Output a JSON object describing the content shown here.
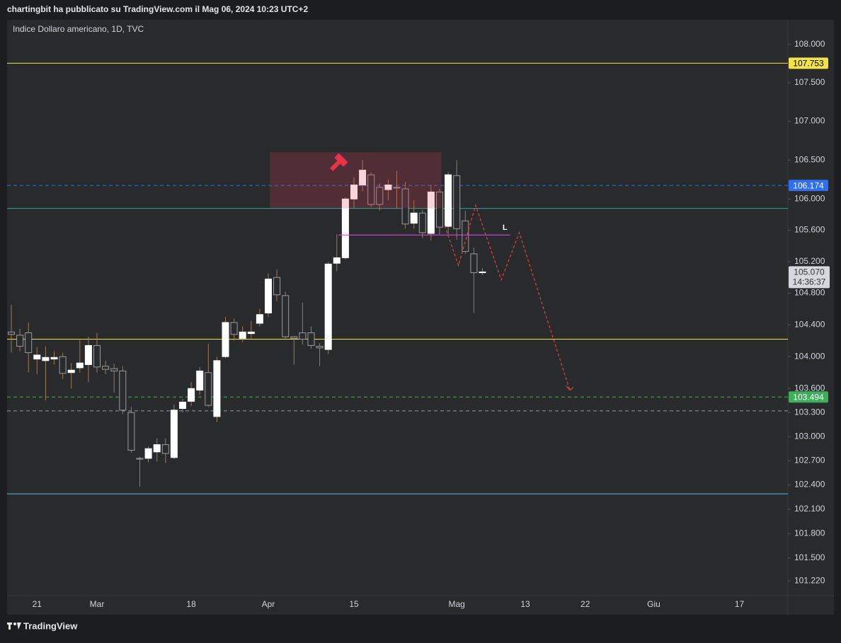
{
  "header": {
    "text": "chartingbit ha pubblicato su TradingView.com il Mag 06, 2024 10:23 UTC+2"
  },
  "footer": {
    "brand": "TradingView"
  },
  "chart_data": {
    "type": "candlestick",
    "title": "Indice Dollaro americano, 1D, TVC",
    "log_scale": true,
    "ylim": [
      101.04,
      108.32
    ],
    "yticks": [
      {
        "value": 108,
        "label": "108.000"
      },
      {
        "value": 107.5,
        "label": "107.500"
      },
      {
        "value": 107,
        "label": "107.000"
      },
      {
        "value": 106.5,
        "label": "106.500"
      },
      {
        "value": 106,
        "label": "106.000"
      },
      {
        "value": 105.6,
        "label": "105.600"
      },
      {
        "value": 105.2,
        "label": "105.200"
      },
      {
        "value": 104.8,
        "label": "104.800"
      },
      {
        "value": 104.4,
        "label": "104.400"
      },
      {
        "value": 104,
        "label": "104.000"
      },
      {
        "value": 103.6,
        "label": "103.600"
      },
      {
        "value": 103.3,
        "label": "103.300"
      },
      {
        "value": 103,
        "label": "103.000"
      },
      {
        "value": 102.7,
        "label": "102.700"
      },
      {
        "value": 102.4,
        "label": "102.400"
      },
      {
        "value": 102.1,
        "label": "102.100"
      },
      {
        "value": 101.8,
        "label": "101.800"
      },
      {
        "value": 101.5,
        "label": "101.500"
      },
      {
        "value": 101.22,
        "label": "101.220"
      }
    ],
    "categories": [
      null,
      null,
      null,
      "21",
      null,
      null,
      null,
      null,
      null,
      null,
      "Mar",
      null,
      null,
      null,
      null,
      null,
      null,
      null,
      null,
      null,
      null,
      "18",
      null,
      null,
      null,
      null,
      null,
      null,
      null,
      null,
      "Apr",
      null,
      null,
      null,
      null,
      null,
      null,
      null,
      null,
      null,
      "15",
      null,
      null,
      null,
      null,
      null,
      null,
      null,
      null,
      null,
      null,
      null,
      "Mag",
      null,
      null,
      null,
      null,
      null,
      null,
      null,
      "13",
      null,
      null,
      null,
      null,
      null,
      null,
      "22",
      null,
      null,
      null,
      null,
      null,
      null,
      null,
      "Giu",
      null,
      null,
      null,
      null,
      null,
      null,
      null,
      null,
      null,
      "17"
    ],
    "open": [
      104.31,
      104.27,
      104.3,
      103.97,
      103.95,
      103.97,
      104.0,
      103.8,
      103.86,
      103.9,
      104.14,
      103.88,
      103.85,
      103.82,
      103.3,
      102.73,
      102.73,
      102.81,
      102.9,
      102.74,
      103.35,
      103.44,
      103.58,
      103.8,
      103.25,
      104.0,
      104.43,
      104.23,
      104.29,
      104.42,
      104.55,
      105.0,
      104.77,
      104.25,
      104.3,
      104.3,
      104.13,
      104.09,
      105.18,
      105.25,
      106.0,
      106.18,
      106.31,
      106.15,
      106.12,
      106.15,
      106.13,
      105.69,
      105.82,
      105.56,
      106.09,
      105.65,
      106.3,
      105.72,
      105.3,
      105.06,
      null,
      null,
      null,
      null,
      null,
      null,
      null,
      null,
      null,
      null,
      null,
      null,
      null,
      null,
      null,
      null,
      null,
      null,
      null,
      null,
      null,
      null,
      null,
      null,
      null,
      null,
      null,
      null,
      null,
      null
    ],
    "high": [
      104.65,
      104.35,
      104.43,
      104.12,
      104.13,
      104.07,
      104.05,
      103.92,
      104.22,
      104.25,
      104.3,
      103.95,
      103.91,
      103.88,
      103.37,
      102.75,
      102.88,
      102.98,
      102.98,
      103.4,
      103.47,
      103.68,
      103.87,
      104.16,
      104.0,
      104.5,
      104.48,
      104.38,
      104.45,
      104.6,
      105.05,
      105.1,
      104.82,
      104.26,
      104.68,
      104.38,
      104.17,
      105.2,
      105.55,
      106.02,
      106.28,
      106.5,
      106.34,
      106.2,
      106.25,
      106.36,
      106.22,
      105.98,
      105.86,
      106.18,
      106.13,
      106.35,
      106.5,
      105.85,
      105.38,
      105.12,
      null,
      null,
      null,
      null,
      null,
      null,
      null,
      null,
      null,
      null,
      null,
      null,
      null,
      null,
      null,
      null,
      null,
      null,
      null,
      null,
      null,
      null,
      null,
      null,
      null,
      null,
      null,
      null,
      null,
      null
    ],
    "low": [
      104.05,
      104.07,
      103.8,
      103.78,
      103.45,
      103.9,
      103.72,
      103.6,
      103.8,
      103.68,
      103.8,
      103.78,
      103.55,
      103.28,
      102.8,
      102.38,
      102.68,
      102.69,
      102.67,
      102.72,
      103.3,
      103.38,
      103.52,
      103.37,
      103.18,
      103.98,
      104.2,
      104.18,
      104.23,
      104.38,
      104.5,
      104.7,
      104.22,
      103.9,
      104.15,
      104.1,
      103.88,
      104.03,
      105.08,
      105.23,
      105.88,
      106.1,
      105.9,
      105.85,
      105.98,
      105.88,
      105.62,
      105.62,
      105.5,
      105.47,
      105.55,
      105.55,
      105.48,
      105.3,
      104.55,
      105.03,
      null,
      null,
      null,
      null,
      null,
      null,
      null,
      null,
      null,
      null,
      null,
      null,
      null,
      null,
      null,
      null,
      null,
      null,
      null,
      null,
      null,
      null,
      null,
      null,
      null,
      null,
      null,
      null,
      null,
      null
    ],
    "close": [
      104.28,
      104.13,
      104.05,
      104.02,
      103.99,
      103.99,
      103.79,
      103.83,
      103.92,
      104.14,
      103.87,
      103.84,
      103.82,
      103.33,
      102.83,
      102.72,
      102.85,
      102.9,
      102.79,
      103.33,
      103.43,
      103.6,
      103.82,
      103.39,
      103.95,
      104.43,
      104.28,
      104.31,
      104.31,
      104.53,
      104.98,
      104.78,
      104.25,
      104.23,
      104.22,
      104.14,
      104.11,
      105.17,
      105.25,
      106.0,
      106.18,
      106.37,
      105.93,
      105.93,
      106.18,
      106.14,
      105.68,
      105.82,
      105.57,
      106.09,
      105.64,
      106.31,
      105.62,
      105.33,
      105.06,
      105.07,
      null,
      null,
      null,
      null,
      null,
      null,
      null,
      null,
      null,
      null,
      null,
      null,
      null,
      null,
      null,
      null,
      null,
      null,
      null,
      null,
      null,
      null,
      null,
      null,
      null,
      null,
      null,
      null,
      null,
      null
    ],
    "up_color": "#ffffff",
    "down_color": "#2a2b2d",
    "down_border": "#9b9b9b",
    "wick_color": "#9c7b5b",
    "levels": [
      {
        "value": 107.753,
        "label": "107.753",
        "color": "#f2e349",
        "dashed": false
      },
      {
        "value": 106.174,
        "label": "106.174",
        "color": "#2f6ff0",
        "dashed": true
      },
      {
        "value": 105.88,
        "color": "#2aa89a",
        "dashed": false
      },
      {
        "value": 104.22,
        "color": "#f2e349",
        "dashed": false
      },
      {
        "value": 103.494,
        "label": "103.494",
        "color": "#3fae5c",
        "dashed": true
      },
      {
        "value": 103.32,
        "color": "#9a9a9a",
        "dashed": true
      },
      {
        "value": 102.29,
        "color": "#4fc3d8",
        "dashed": false
      }
    ],
    "last_price": {
      "value": 105.07,
      "label": "105.070",
      "countdown": "14:36:37"
    },
    "zone": {
      "x": [
        30.2,
        50.2
      ],
      "y": [
        105.88,
        106.6
      ],
      "color": "#e0405a"
    },
    "marker_line": {
      "value": 105.54,
      "x": [
        38.2,
        58.2
      ],
      "label": "L",
      "color": "#e040e0"
    },
    "projection": {
      "color": "#e0404a",
      "x": [
        50.6,
        52.2,
        54.2,
        57.2,
        59.3,
        65.2
      ],
      "y": [
        105.66,
        105.15,
        105.92,
        104.97,
        105.57,
        103.58
      ]
    }
  }
}
